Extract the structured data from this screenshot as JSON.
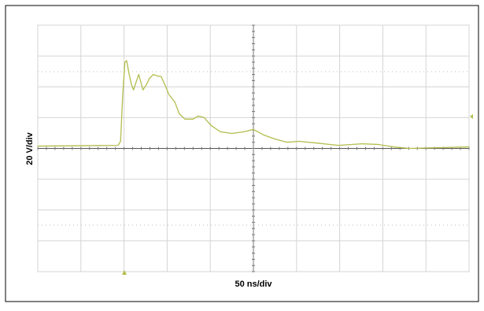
{
  "chart_data": {
    "type": "line",
    "xlabel": "50 ns/div",
    "ylabel": "20 V/div",
    "xlim": [
      0,
      500
    ],
    "xticks": [
      0,
      50,
      100,
      150,
      200,
      250,
      300,
      350,
      400,
      450,
      500
    ],
    "ylim": [
      -80,
      80
    ],
    "yticks": [
      -80,
      -60,
      -40,
      -20,
      0,
      20,
      40,
      60,
      80
    ],
    "grid": true,
    "series": [
      {
        "color": "#b3bd4c",
        "x": [
          0,
          93,
          96,
          98.5,
          101,
          103,
          106,
          108.6,
          111,
          114,
          117,
          119.5,
          122,
          126,
          129.6,
          134,
          138.7,
          143,
          148,
          152,
          159,
          164,
          170.6,
          180,
          186,
          193,
          200.7,
          211.7,
          225,
          239,
          250,
          262,
          275.5,
          289,
          303,
          321,
          348.5,
          376,
          394,
          412,
          430.7,
          467,
          500
        ],
        "values": [
          1.5,
          2,
          4.6,
          35,
          56,
          57,
          48,
          41.5,
          38,
          43,
          48,
          43,
          38,
          41.5,
          45.6,
          48,
          47,
          46.7,
          40.5,
          35,
          30,
          22.5,
          19,
          19,
          21,
          20,
          15,
          10.8,
          9.7,
          10.8,
          12.3,
          8.7,
          6,
          4,
          4.6,
          3.6,
          2,
          3,
          2.6,
          1,
          0,
          0.5,
          1
        ]
      }
    ]
  }
}
